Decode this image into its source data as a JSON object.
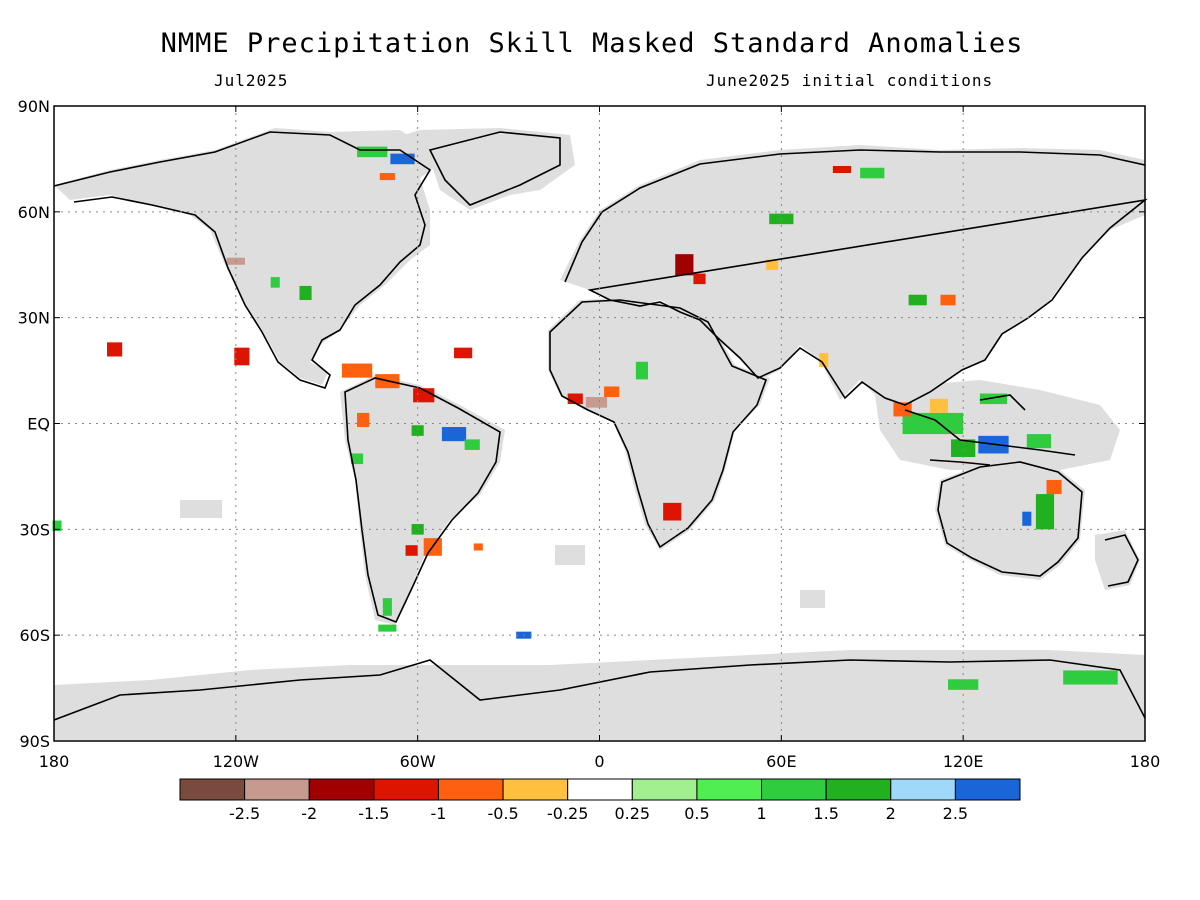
{
  "title": "NMME Precipitation Skill Masked Standard Anomalies",
  "subtitle_left": "Jul2025",
  "subtitle_right": "June2025 initial conditions",
  "axes": {
    "y_ticks": [
      {
        "lat": 90,
        "label": "90N"
      },
      {
        "lat": 60,
        "label": "60N"
      },
      {
        "lat": 30,
        "label": "30N"
      },
      {
        "lat": 0,
        "label": "EQ"
      },
      {
        "lat": -30,
        "label": "30S"
      },
      {
        "lat": -60,
        "label": "60S"
      },
      {
        "lat": -90,
        "label": "90S"
      }
    ],
    "x_ticks": [
      {
        "lon": -180,
        "label": "180"
      },
      {
        "lon": -120,
        "label": "120W"
      },
      {
        "lon": -60,
        "label": "60W"
      },
      {
        "lon": 0,
        "label": "0"
      },
      {
        "lon": 60,
        "label": "60E"
      },
      {
        "lon": 120,
        "label": "120E"
      },
      {
        "lon": 180,
        "label": "180"
      }
    ]
  },
  "legend": {
    "colors": [
      "#7a4a3f",
      "#c79a8f",
      "#a00000",
      "#dd1500",
      "#ff6010",
      "#ffc040",
      "#ffffff",
      "#a0f090",
      "#50ee50",
      "#30cc40",
      "#20b020",
      "#a0d8fa",
      "#1a66d8"
    ],
    "labels": [
      "-2.5",
      "-2",
      "-1.5",
      "-1",
      "-0.5",
      "-0.25",
      "0.25",
      "0.5",
      "1",
      "1.5",
      "2",
      "2.5"
    ]
  },
  "colors": {
    "mask": "#dedede",
    "ocean": "#ffffff",
    "coast": "#000000"
  },
  "anomaly_patches": [
    {
      "lon": -48,
      "lat": -3,
      "w": 8,
      "h": 4,
      "cat": 12
    },
    {
      "lon": -42,
      "lat": -6,
      "w": 5,
      "h": 3,
      "cat": 9
    },
    {
      "lon": -58,
      "lat": 8,
      "w": 7,
      "h": 4,
      "cat": 3
    },
    {
      "lon": -80,
      "lat": 15,
      "w": 10,
      "h": 4,
      "cat": 4
    },
    {
      "lon": -70,
      "lat": 12,
      "w": 8,
      "h": 4,
      "cat": 4
    },
    {
      "lon": -45,
      "lat": 20,
      "w": 6,
      "h": 3,
      "cat": 3
    },
    {
      "lon": -118,
      "lat": 19,
      "w": 5,
      "h": 5,
      "cat": 3
    },
    {
      "lon": -160,
      "lat": 21,
      "w": 5,
      "h": 4,
      "cat": 3
    },
    {
      "lon": -55,
      "lat": -35,
      "w": 6,
      "h": 5,
      "cat": 4
    },
    {
      "lon": -62,
      "lat": -36,
      "w": 4,
      "h": 3,
      "cat": 3
    },
    {
      "lon": -70,
      "lat": -52,
      "w": 3,
      "h": 5,
      "cat": 9
    },
    {
      "lon": -1,
      "lat": 6,
      "w": 7,
      "h": 3,
      "cat": 1
    },
    {
      "lon": -8,
      "lat": 7,
      "w": 5,
      "h": 3,
      "cat": 3
    },
    {
      "lon": 4,
      "lat": 9,
      "w": 5,
      "h": 3,
      "cat": 4
    },
    {
      "lon": 24,
      "lat": -25,
      "w": 6,
      "h": 5,
      "cat": 3
    },
    {
      "lon": 28,
      "lat": 45,
      "w": 6,
      "h": 6,
      "cat": 2
    },
    {
      "lon": 33,
      "lat": 41,
      "w": 4,
      "h": 3,
      "cat": 3
    },
    {
      "lon": 14,
      "lat": 15,
      "w": 4,
      "h": 5,
      "cat": 9
    },
    {
      "lon": -65,
      "lat": 75,
      "w": 8,
      "h": 3,
      "cat": 12
    },
    {
      "lon": -75,
      "lat": 77,
      "w": 10,
      "h": 3,
      "cat": 9
    },
    {
      "lon": -70,
      "lat": 70,
      "w": 5,
      "h": 2,
      "cat": 4
    },
    {
      "lon": 110,
      "lat": 0,
      "w": 20,
      "h": 6,
      "cat": 9
    },
    {
      "lon": 130,
      "lat": -6,
      "w": 10,
      "h": 5,
      "cat": 12
    },
    {
      "lon": 120,
      "lat": -7,
      "w": 8,
      "h": 5,
      "cat": 10
    },
    {
      "lon": 145,
      "lat": -5,
      "w": 8,
      "h": 4,
      "cat": 9
    },
    {
      "lon": 147,
      "lat": -25,
      "w": 6,
      "h": 10,
      "cat": 10
    },
    {
      "lon": 141,
      "lat": -27,
      "w": 3,
      "h": 4,
      "cat": 12
    },
    {
      "lon": 150,
      "lat": -18,
      "w": 5,
      "h": 4,
      "cat": 4
    },
    {
      "lon": 112,
      "lat": 5,
      "w": 6,
      "h": 4,
      "cat": 5
    },
    {
      "lon": 100,
      "lat": 4,
      "w": 6,
      "h": 4,
      "cat": 4
    },
    {
      "lon": 130,
      "lat": 7,
      "w": 9,
      "h": 3,
      "cat": 9
    },
    {
      "lon": 162,
      "lat": -72,
      "w": 18,
      "h": 4,
      "cat": 9
    },
    {
      "lon": 120,
      "lat": -74,
      "w": 10,
      "h": 3,
      "cat": 9
    },
    {
      "lon": -179,
      "lat": -29,
      "w": 3,
      "h": 3,
      "cat": 9
    },
    {
      "lon": -25,
      "lat": -60,
      "w": 5,
      "h": 2,
      "cat": 12
    },
    {
      "lon": -70,
      "lat": -58,
      "w": 6,
      "h": 2,
      "cat": 9
    },
    {
      "lon": -97,
      "lat": 37,
      "w": 4,
      "h": 4,
      "cat": 10
    },
    {
      "lon": -60,
      "lat": -2,
      "w": 4,
      "h": 3,
      "cat": 10
    },
    {
      "lon": -107,
      "lat": 40,
      "w": 3,
      "h": 3,
      "cat": 9
    },
    {
      "lon": -120,
      "lat": 46,
      "w": 6,
      "h": 2,
      "cat": 1
    },
    {
      "lon": -40,
      "lat": -35,
      "w": 3,
      "h": 2,
      "cat": 4
    },
    {
      "lon": 57,
      "lat": 45,
      "w": 4,
      "h": 3,
      "cat": 5
    },
    {
      "lon": 60,
      "lat": 58,
      "w": 8,
      "h": 3,
      "cat": 10
    },
    {
      "lon": 90,
      "lat": 71,
      "w": 8,
      "h": 3,
      "cat": 9
    },
    {
      "lon": 80,
      "lat": 72,
      "w": 6,
      "h": 2,
      "cat": 3
    },
    {
      "lon": 105,
      "lat": 35,
      "w": 6,
      "h": 3,
      "cat": 10
    },
    {
      "lon": 115,
      "lat": 35,
      "w": 5,
      "h": 3,
      "cat": 4
    },
    {
      "lon": 74,
      "lat": 18,
      "w": 3,
      "h": 4,
      "cat": 5
    },
    {
      "lon": -80,
      "lat": -10,
      "w": 4,
      "h": 3,
      "cat": 9
    },
    {
      "lon": -78,
      "lat": 1,
      "w": 4,
      "h": 4,
      "cat": 4
    },
    {
      "lon": -60,
      "lat": -30,
      "w": 4,
      "h": 3,
      "cat": 10
    }
  ]
}
